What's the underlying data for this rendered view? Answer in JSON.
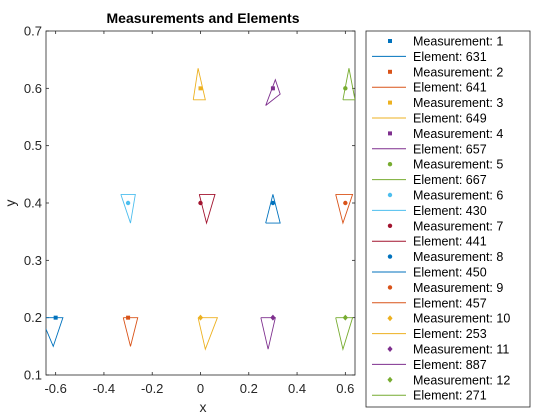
{
  "chart_data": {
    "type": "scatter",
    "title": "Measurements and Elements",
    "xlabel": "x",
    "ylabel": "y",
    "xlim": [
      -0.64,
      0.64
    ],
    "ylim": [
      0.1,
      0.7
    ],
    "xticks": [
      "-0.6",
      "-0.4",
      "-0.2",
      "0",
      "0.2",
      "0.4",
      "0.6"
    ],
    "yticks": [
      "0.1",
      "0.2",
      "0.3",
      "0.4",
      "0.5",
      "0.6",
      "0.7"
    ],
    "grid": false,
    "legend_position": "outside-right",
    "series": [
      {
        "measurement_name": "Measurement: 1",
        "element_name": "Element: 631",
        "color": "#0072BD",
        "marker": "square",
        "point": [
          -0.6,
          0.2
        ],
        "triangle": [
          [
            -0.66,
            0.2
          ],
          [
            -0.57,
            0.2
          ],
          [
            -0.61,
            0.15
          ]
        ]
      },
      {
        "measurement_name": "Measurement: 2",
        "element_name": "Element: 641",
        "color": "#D95319",
        "marker": "square",
        "point": [
          -0.3,
          0.2
        ],
        "triangle": [
          [
            -0.32,
            0.2
          ],
          [
            -0.26,
            0.2
          ],
          [
            -0.29,
            0.15
          ]
        ]
      },
      {
        "measurement_name": "Measurement: 3",
        "element_name": "Element: 649",
        "color": "#EDB120",
        "marker": "square",
        "point": [
          0,
          0.6
        ],
        "triangle": [
          [
            -0.03,
            0.58
          ],
          [
            0.02,
            0.58
          ],
          [
            -0.01,
            0.635
          ]
        ]
      },
      {
        "measurement_name": "Measurement: 4",
        "element_name": "Element: 657",
        "color": "#7E2F8E",
        "marker": "square",
        "point": [
          0.3,
          0.6
        ],
        "triangle": [
          [
            0.27,
            0.57
          ],
          [
            0.33,
            0.59
          ],
          [
            0.31,
            0.615
          ]
        ]
      },
      {
        "measurement_name": "Measurement: 5",
        "element_name": "Element: 667",
        "color": "#77AC30",
        "marker": "circle",
        "point": [
          0.6,
          0.6
        ],
        "triangle": [
          [
            0.59,
            0.58
          ],
          [
            0.64,
            0.58
          ],
          [
            0.615,
            0.635
          ]
        ]
      },
      {
        "measurement_name": "Measurement: 6",
        "element_name": "Element: 430",
        "color": "#4DBEEE",
        "marker": "circle",
        "point": [
          -0.3,
          0.4
        ],
        "triangle": [
          [
            -0.33,
            0.415
          ],
          [
            -0.27,
            0.415
          ],
          [
            -0.29,
            0.365
          ]
        ]
      },
      {
        "measurement_name": "Measurement: 7",
        "element_name": "Element: 441",
        "color": "#A2142F",
        "marker": "circle",
        "point": [
          0,
          0.4
        ],
        "triangle": [
          [
            -0.005,
            0.415
          ],
          [
            0.06,
            0.415
          ],
          [
            0.025,
            0.365
          ]
        ]
      },
      {
        "measurement_name": "Measurement: 8",
        "element_name": "Element: 450",
        "color": "#0072BD",
        "marker": "circle",
        "point": [
          0.3,
          0.4
        ],
        "triangle": [
          [
            0.27,
            0.365
          ],
          [
            0.33,
            0.365
          ],
          [
            0.3,
            0.415
          ]
        ]
      },
      {
        "measurement_name": "Measurement: 9",
        "element_name": "Element: 457",
        "color": "#D95319",
        "marker": "circle",
        "point": [
          0.6,
          0.4
        ],
        "triangle": [
          [
            0.56,
            0.415
          ],
          [
            0.63,
            0.415
          ],
          [
            0.59,
            0.365
          ]
        ]
      },
      {
        "measurement_name": "Measurement: 10",
        "element_name": "Element: 253",
        "color": "#EDB120",
        "marker": "diamond",
        "point": [
          0,
          0.2
        ],
        "triangle": [
          [
            -0.01,
            0.2
          ],
          [
            0.07,
            0.2
          ],
          [
            0.02,
            0.145
          ]
        ]
      },
      {
        "measurement_name": "Measurement: 11",
        "element_name": "Element: 887",
        "color": "#7E2F8E",
        "marker": "diamond",
        "point": [
          0.3,
          0.2
        ],
        "triangle": [
          [
            0.25,
            0.2
          ],
          [
            0.31,
            0.2
          ],
          [
            0.28,
            0.145
          ]
        ]
      },
      {
        "measurement_name": "Measurement: 12",
        "element_name": "Element: 271",
        "color": "#77AC30",
        "marker": "diamond",
        "point": [
          0.6,
          0.2
        ],
        "triangle": [
          [
            0.56,
            0.2
          ],
          [
            0.63,
            0.2
          ],
          [
            0.59,
            0.145
          ]
        ]
      }
    ]
  }
}
